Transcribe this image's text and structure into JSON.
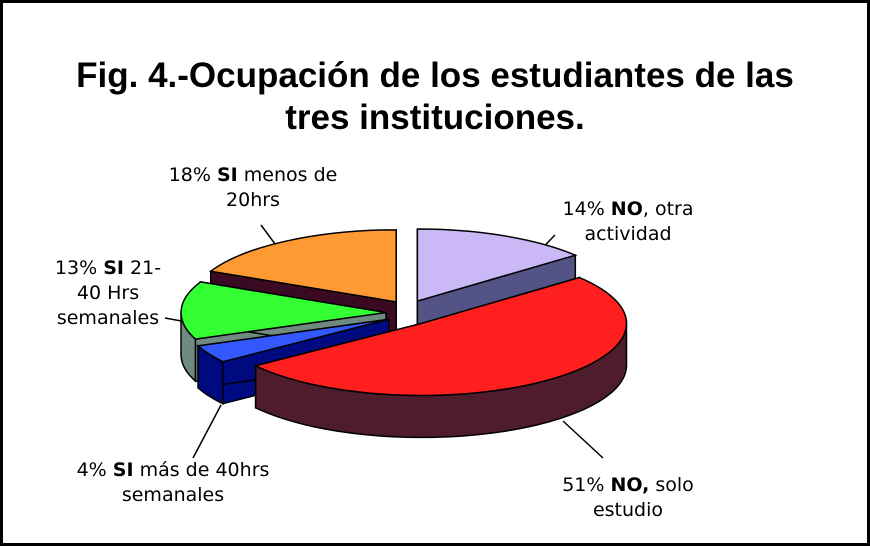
{
  "chart_data": {
    "type": "pie",
    "title": "Fig. 4.-Ocupación de los estudiantes de las tres instituciones.",
    "values": [
      14,
      51,
      4,
      13,
      18
    ],
    "value_labels": [
      "14%",
      "51%",
      "4%",
      "13%",
      "18%"
    ],
    "label_bold": [
      "NO",
      "NO,",
      "SI",
      "SI",
      "SI"
    ],
    "label_rest": [
      ", otra actividad",
      "solo estudio",
      "más de 40hrs semanales",
      "21-40 Hrs semanales",
      "menos de 20hrs"
    ],
    "colors": [
      "#cbb8f7",
      "#ff1f1f",
      "#3358ff",
      "#33ff33",
      "#ff9a33"
    ],
    "side_colors": [
      "#535385",
      "#4e1c2c",
      "#000a80",
      "#6f8a80",
      "#3a0a22"
    ]
  }
}
